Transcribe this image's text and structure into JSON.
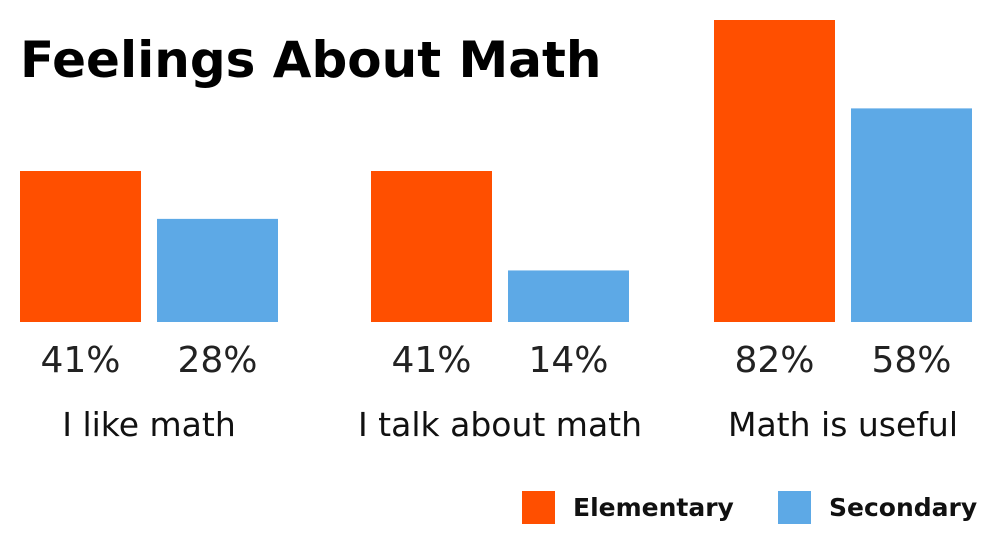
{
  "chart_data": {
    "type": "bar",
    "title": "Feelings About Math",
    "categories": [
      "I like math",
      "I talk about math",
      "Math is useful"
    ],
    "series": [
      {
        "name": "Elementary",
        "color": "#ff4f00",
        "values": [
          41,
          41,
          82
        ],
        "labels": [
          "41%",
          "41%",
          "82%"
        ]
      },
      {
        "name": "Secondary",
        "color": "#5da9e6",
        "values": [
          28,
          14,
          58
        ],
        "labels": [
          "28%",
          "14%",
          "58%"
        ]
      }
    ],
    "ylim": [
      0,
      82
    ],
    "grid": false,
    "legend": "bottom-right"
  }
}
